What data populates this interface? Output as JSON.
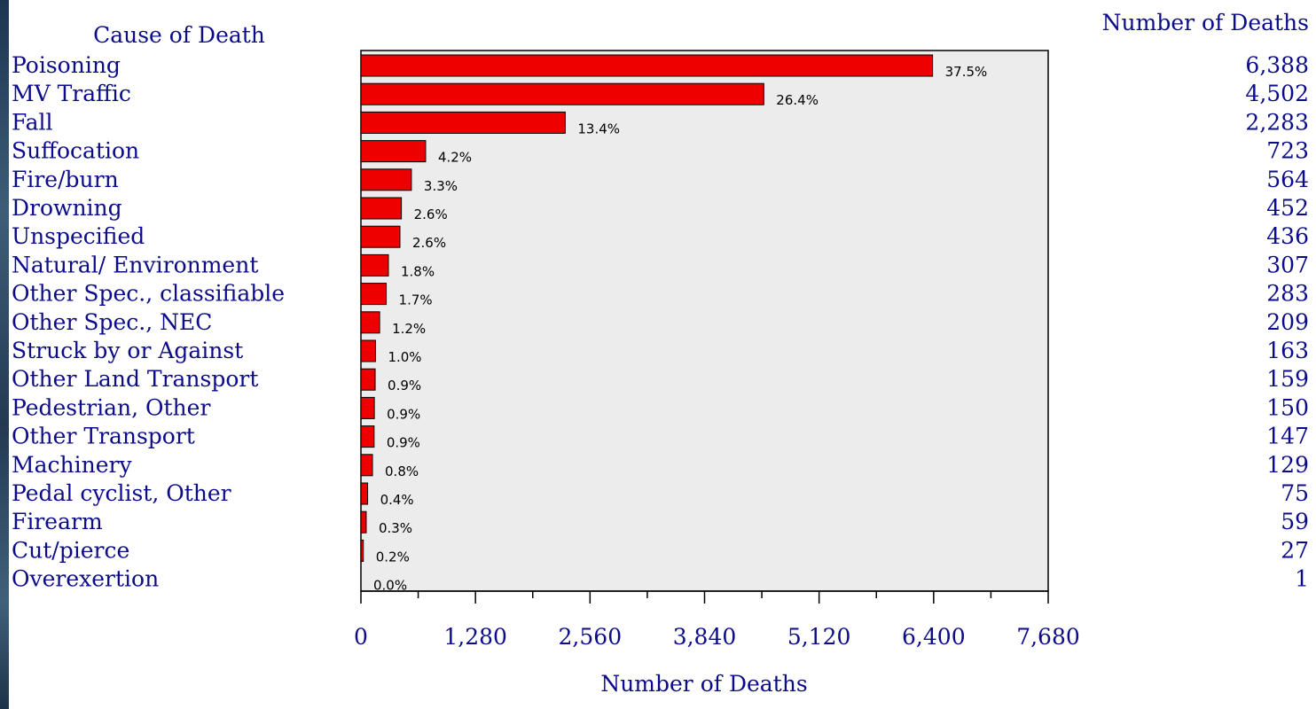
{
  "chart_data": {
    "type": "bar",
    "orientation": "horizontal",
    "category_header": "Cause of Death",
    "count_header": "Number of Deaths",
    "xlabel": "Number of Deaths",
    "xlim": [
      0,
      7680
    ],
    "xticks": [
      0,
      1280,
      2560,
      3840,
      5120,
      6400,
      7680
    ],
    "xtick_labels": [
      "0",
      "1,280",
      "2,560",
      "3,840",
      "5,120",
      "6,400",
      "7,680"
    ],
    "categories": [
      "Poisoning",
      "MV Traffic",
      "Fall",
      "Suffocation",
      "Fire/burn",
      "Drowning",
      "Unspecified",
      "Natural/ Environment",
      "Other Spec., classifiable",
      "Other Spec., NEC",
      "Struck by or Against",
      "Other Land Transport",
      "Pedestrian, Other",
      "Other Transport",
      "Machinery",
      "Pedal cyclist, Other",
      "Firearm",
      "Cut/pierce",
      "Overexertion"
    ],
    "values": [
      6388,
      4502,
      2283,
      723,
      564,
      452,
      436,
      307,
      283,
      209,
      163,
      159,
      150,
      147,
      129,
      75,
      59,
      27,
      1
    ],
    "value_labels": [
      "6,388",
      "4,502",
      "2,283",
      "723",
      "564",
      "452",
      "436",
      "307",
      "283",
      "209",
      "163",
      "159",
      "150",
      "147",
      "129",
      "75",
      "59",
      "27",
      "1"
    ],
    "percent_labels": [
      "37.5%",
      "26.4%",
      "13.4%",
      "4.2%",
      "3.3%",
      "2.6%",
      "2.6%",
      "1.8%",
      "1.7%",
      "1.2%",
      "1.0%",
      "0.9%",
      "0.9%",
      "0.9%",
      "0.8%",
      "0.4%",
      "0.3%",
      "0.2%",
      "0.0%"
    ],
    "grid": false,
    "colors": {
      "bar": "#ee0000",
      "plot_background": "#ececec",
      "text": "#0c0c8a"
    }
  }
}
